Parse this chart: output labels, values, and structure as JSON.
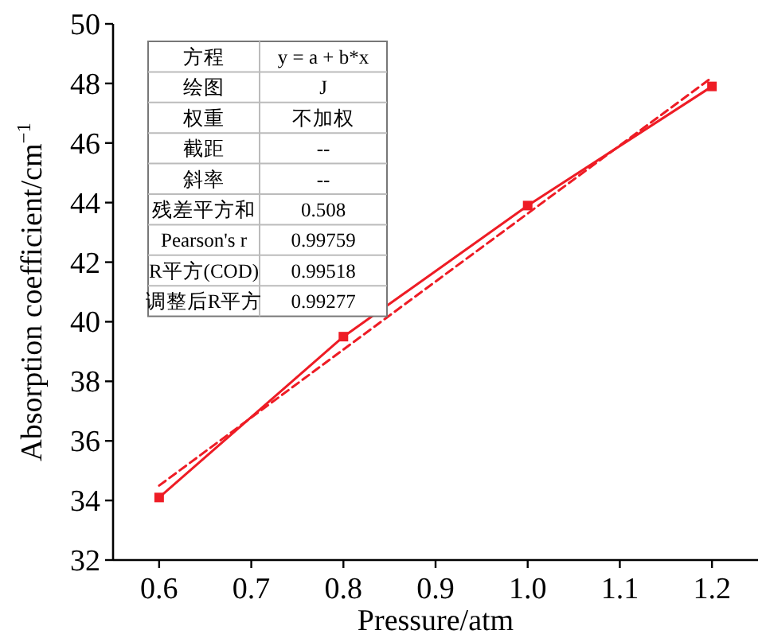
{
  "chart_data": {
    "type": "line",
    "xlabel": "Pressure/atm",
    "ylabel": "Absorption coefficient/cm$^{−1}$",
    "xlim": [
      0.55,
      1.25
    ],
    "xticks": [
      {
        "value": 0.6,
        "label": "0.6"
      },
      {
        "value": 0.7,
        "label": "0.7"
      },
      {
        "value": 0.8,
        "label": "0.8"
      },
      {
        "value": 0.9,
        "label": "0.9"
      },
      {
        "value": 1.0,
        "label": "1.0"
      },
      {
        "value": 1.1,
        "label": "1.1"
      },
      {
        "value": 1.2,
        "label": "1.2"
      }
    ],
    "ylim": [
      32,
      50
    ],
    "yticks": [
      32,
      34,
      36,
      38,
      40,
      42,
      44,
      46,
      48,
      50
    ],
    "series": [
      {
        "color": "#ee1c25",
        "x": [
          0.6,
          0.8,
          1.0,
          1.2
        ],
        "values": [
          34.1,
          39.5,
          43.9,
          47.9
        ],
        "marker": "square",
        "line_style": "solid"
      },
      {
        "color": "#ee1c25",
        "x": [
          0.6,
          1.2
        ],
        "values": [
          34.5,
          48.2
        ],
        "marker": "none",
        "line_style": "dashed"
      }
    ],
    "annotations": [
      "方程",
      "y = a + b*x",
      "绘图",
      "J",
      "权重",
      "不加权",
      "截距",
      "--",
      "斜率",
      "--",
      "残差平方和",
      "0.508",
      "Pearson's r",
      "0.99759",
      "R平方(COD)",
      "0.99518",
      "调整后R平方",
      "0.99277"
    ]
  }
}
